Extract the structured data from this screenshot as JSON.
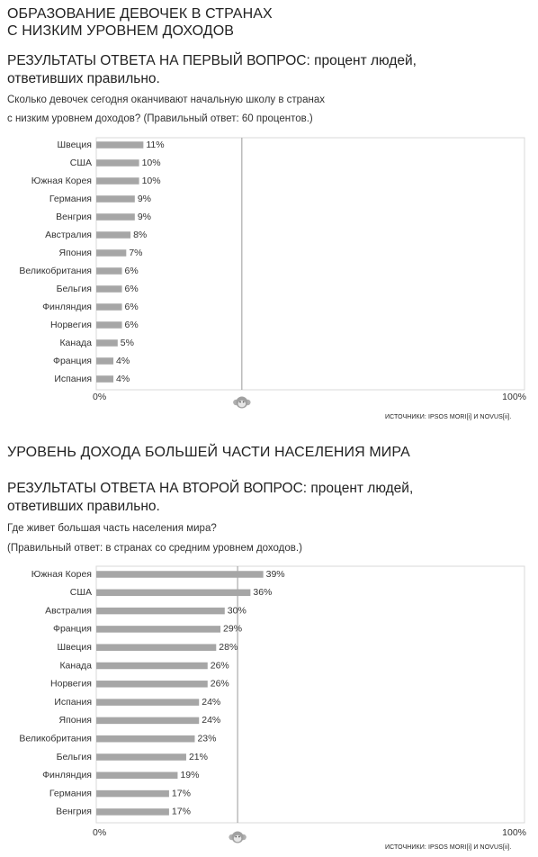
{
  "section1": {
    "title_line1": "ОБРАЗОВАНИЕ ДЕВОЧЕК В СТРАНАХ",
    "title_line2": "С НИЗКИМ УРОВНЕМ ДОХОДОВ",
    "question_title_line1": "РЕЗУЛЬТАТЫ ОТВЕТА НА ПЕРВЫЙ ВОПРОС: процент людей,",
    "question_title_line2": "ответивших правильно.",
    "question_line1": "Сколько девочек сегодня оканчивают начальную школу в странах",
    "question_line2": "с низким уровнем доходов? (Правильный ответ: 60 процентов.)",
    "source": "ИСТОЧНИКИ: IPSOS MORI[i] И NOVUS[ii]."
  },
  "section2": {
    "title": "УРОВЕНЬ ДОХОДА БОЛЬШЕЙ ЧАСТИ НАСЕЛЕНИЯ МИРА",
    "question_title_line1": "РЕЗУЛЬТАТЫ ОТВЕТА НА ВТОРОЙ ВОПРОС: процент людей,",
    "question_title_line2": "ответивших правильно.",
    "question_line1": "Где живет большая часть населения мира?",
    "question_line2": "(Правильный ответ: в странах со средним уровнем доходов.)",
    "source": "ИСТОЧНИКИ: IPSOS MORI[i] И NOVUS[ii]."
  },
  "chart_data": [
    {
      "type": "bar",
      "orientation": "horizontal",
      "categories": [
        "Швеция",
        "США",
        "Южная Корея",
        "Германия",
        "Венгрия",
        "Австралия",
        "Япония",
        "Великобритания",
        "Бельгия",
        "Финляндия",
        "Норвегия",
        "Канада",
        "Франция",
        "Испания"
      ],
      "values": [
        11,
        10,
        10,
        9,
        9,
        8,
        7,
        6,
        6,
        6,
        6,
        5,
        4,
        4
      ],
      "value_suffix": "%",
      "xlim": [
        0,
        100
      ],
      "x_tick_labels": [
        "0%",
        "100%"
      ],
      "reference_value": 34,
      "grid": false,
      "bar_color": "#a6a6a6"
    },
    {
      "type": "bar",
      "orientation": "horizontal",
      "categories": [
        "Южная Корея",
        "США",
        "Австралия",
        "Франция",
        "Швеция",
        "Канада",
        "Норвегия",
        "Испания",
        "Япония",
        "Великобритания",
        "Бельгия",
        "Финляндия",
        "Германия",
        "Венгрия"
      ],
      "values": [
        39,
        36,
        30,
        29,
        28,
        26,
        26,
        24,
        24,
        23,
        21,
        19,
        17,
        17
      ],
      "value_suffix": "%",
      "xlim": [
        0,
        100
      ],
      "x_tick_labels": [
        "0%",
        "100%"
      ],
      "reference_value": 33,
      "grid": false,
      "bar_color": "#a6a6a6"
    }
  ]
}
